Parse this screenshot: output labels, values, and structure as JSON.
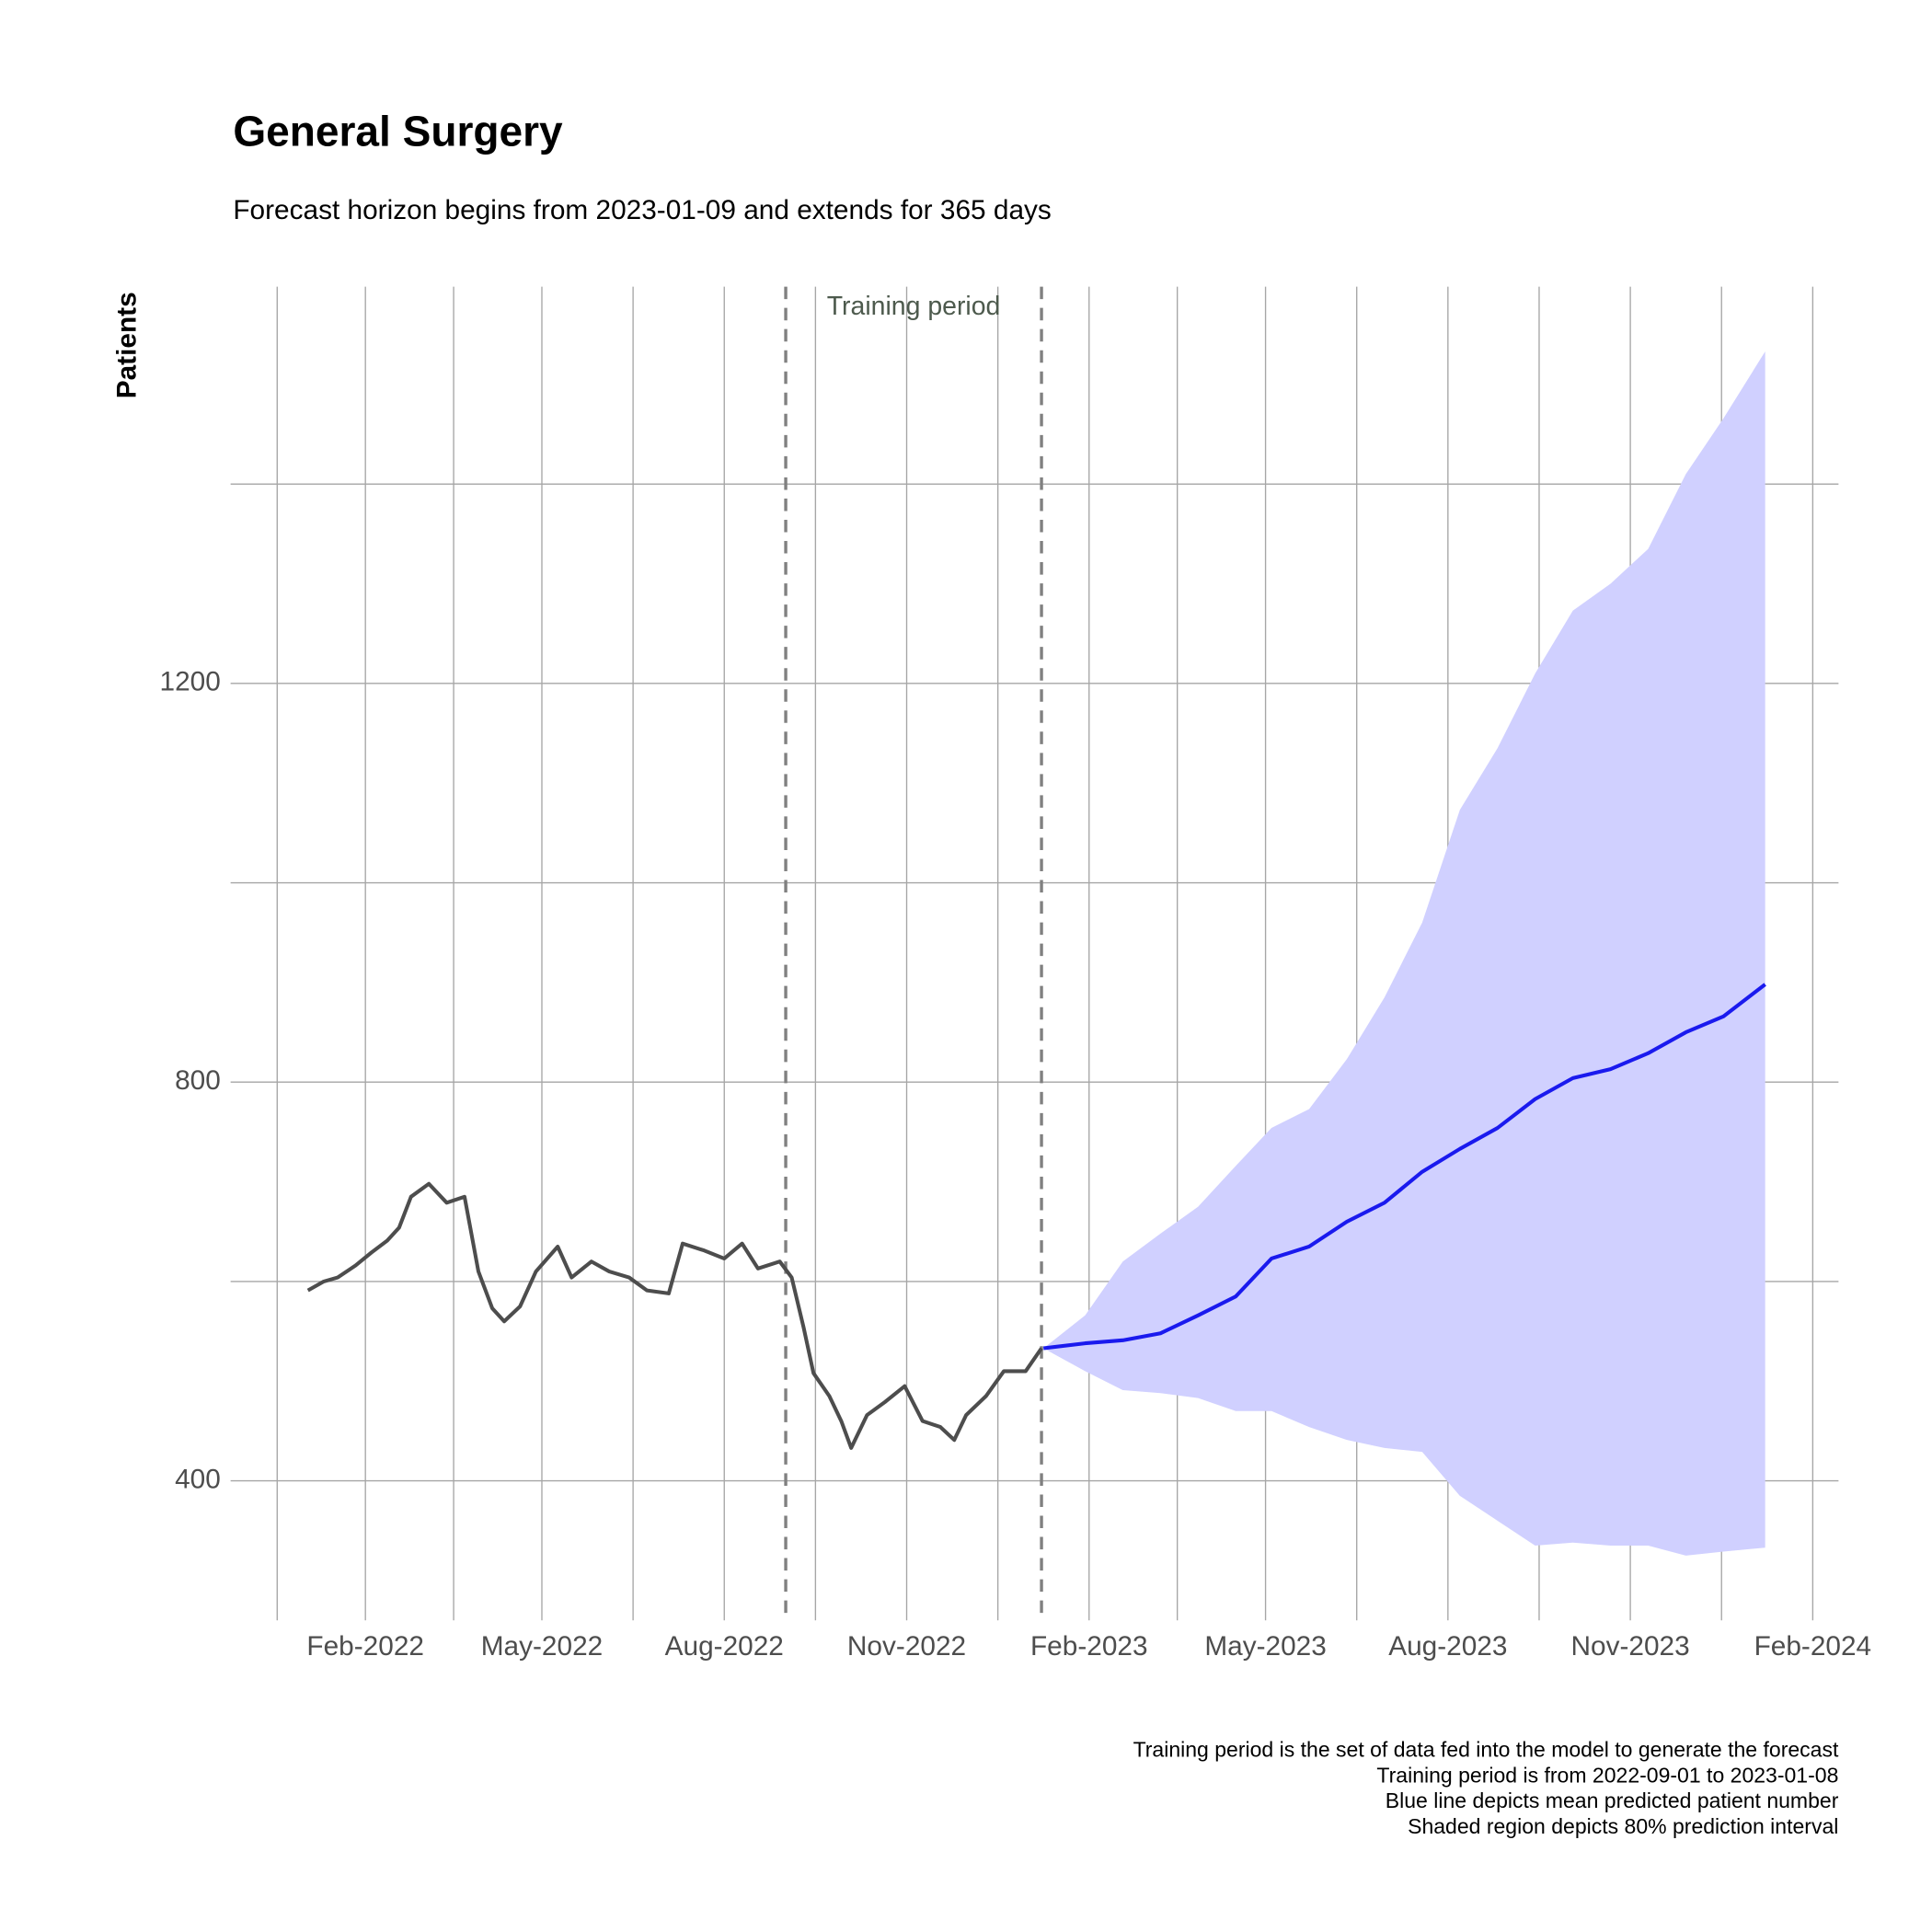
{
  "chart_data": {
    "type": "line",
    "title": "General Surgery",
    "subtitle": "Forecast horizon begins from 2023-01-09 and extends for 365 days",
    "ylabel": "Patients",
    "annotation": "Training period",
    "vlines": [
      "2022-09-01",
      "2023-01-08"
    ],
    "caption": [
      "Training period is the set of data fed into the model to generate the forecast",
      "Training period is from 2022-09-01 to 2023-01-08",
      "Blue line depicts mean predicted patient number",
      "Shaded region depicts 80% prediction interval"
    ],
    "xlim": [
      "2021-11-25",
      "2024-02-14"
    ],
    "xticks": [
      {
        "value": "2022-02-01",
        "label": "Feb-2022"
      },
      {
        "value": "2022-05-01",
        "label": "May-2022"
      },
      {
        "value": "2022-08-01",
        "label": "Aug-2022"
      },
      {
        "value": "2022-11-01",
        "label": "Nov-2022"
      },
      {
        "value": "2023-02-01",
        "label": "Feb-2023"
      },
      {
        "value": "2023-05-01",
        "label": "May-2023"
      },
      {
        "value": "2023-08-01",
        "label": "Aug-2023"
      },
      {
        "value": "2023-11-01",
        "label": "Nov-2023"
      },
      {
        "value": "2024-02-01",
        "label": "Feb-2024"
      }
    ],
    "ylim": [
      260,
      1598
    ],
    "yticks": [
      400,
      800,
      1200
    ],
    "grid": true,
    "series": [
      {
        "color": "#4d4d4d",
        "x": [
          "2022-01-03",
          "2022-01-11",
          "2022-01-18",
          "2022-01-27",
          "2022-02-04",
          "2022-02-12",
          "2022-02-18",
          "2022-02-24",
          "2022-03-05",
          "2022-03-14",
          "2022-03-23",
          "2022-03-30",
          "2022-04-06",
          "2022-04-12",
          "2022-04-20",
          "2022-04-28",
          "2022-05-09",
          "2022-05-16",
          "2022-05-26",
          "2022-06-04",
          "2022-06-14",
          "2022-06-23",
          "2022-07-04",
          "2022-07-11",
          "2022-07-22",
          "2022-08-01",
          "2022-08-10",
          "2022-08-18",
          "2022-08-29",
          "2022-09-04",
          "2022-09-10",
          "2022-09-15",
          "2022-09-23",
          "2022-09-29",
          "2022-10-04",
          "2022-10-12",
          "2022-10-21",
          "2022-10-31",
          "2022-11-09",
          "2022-11-18",
          "2022-11-25",
          "2022-12-01",
          "2022-12-11",
          "2022-12-20",
          "2022-12-31",
          "2023-01-08"
        ],
        "values": [
          591,
          600,
          604,
          616,
          629,
          641,
          654,
          685,
          698,
          679,
          685,
          610,
          573,
          560,
          575,
          610,
          635,
          604,
          620,
          610,
          604,
          591,
          588,
          638,
          631,
          623,
          638,
          613,
          620,
          604,
          554,
          508,
          485,
          460,
          433,
          466,
          479,
          495,
          460,
          454,
          441,
          466,
          485,
          510,
          510,
          533
        ]
      },
      {
        "color": "#1a1aee",
        "x": [
          "2023-01-09",
          "2023-01-30",
          "2023-02-18",
          "2023-03-09",
          "2023-03-28",
          "2023-04-16",
          "2023-05-04",
          "2023-05-23",
          "2023-06-11",
          "2023-06-30",
          "2023-07-19",
          "2023-08-07",
          "2023-08-26",
          "2023-09-14",
          "2023-10-03",
          "2023-10-22",
          "2023-11-10",
          "2023-11-29",
          "2023-12-18",
          "2024-01-08"
        ],
        "values": [
          533,
          538,
          541,
          548,
          566,
          585,
          623,
          635,
          660,
          679,
          710,
          733,
          754,
          783,
          804,
          813,
          829,
          850,
          866,
          898
        ]
      }
    ],
    "band": {
      "color": "#d0d0ff",
      "x": [
        "2023-01-09",
        "2023-01-30",
        "2023-02-18",
        "2023-03-09",
        "2023-03-28",
        "2023-04-16",
        "2023-05-04",
        "2023-05-23",
        "2023-06-11",
        "2023-06-30",
        "2023-07-19",
        "2023-08-07",
        "2023-08-26",
        "2023-09-14",
        "2023-10-03",
        "2023-10-22",
        "2023-11-10",
        "2023-11-29",
        "2023-12-18",
        "2024-01-08"
      ],
      "lower": [
        533,
        510,
        491,
        488,
        483,
        470,
        470,
        454,
        441,
        433,
        429,
        385,
        360,
        335,
        338,
        335,
        335,
        325,
        329,
        333
      ],
      "upper": [
        533,
        566,
        620,
        648,
        675,
        716,
        754,
        773,
        823,
        885,
        960,
        1073,
        1135,
        1210,
        1273,
        1300,
        1335,
        1410,
        1466,
        1533
      ]
    }
  }
}
